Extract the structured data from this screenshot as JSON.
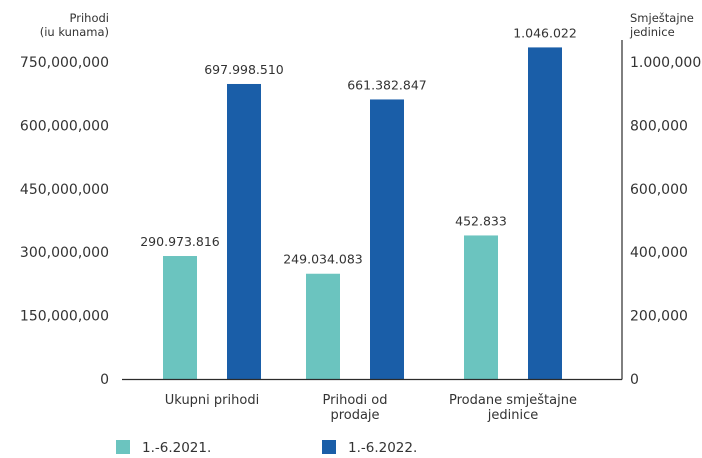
{
  "chart_data": {
    "type": "bar",
    "categories": [
      "Ukupni prihodi",
      "Prihodi od prodaje",
      "Prodane smještajne jedinice"
    ],
    "category_lines": [
      [
        "Ukupni prihodi"
      ],
      [
        "Prihodi od",
        "prodaje"
      ],
      [
        "Prodane smještajne",
        "jedinice"
      ]
    ],
    "series": [
      {
        "name": "1.-6.2021.",
        "color": "#6bc4bf",
        "values": [
          290973816,
          249034083,
          452833
        ],
        "labels": [
          "290.973.816",
          "249.034.083",
          "452.833"
        ],
        "axis": [
          "left",
          "left",
          "right"
        ]
      },
      {
        "name": "1.-6.2022.",
        "color": "#1a5ea8",
        "values": [
          697998510,
          661382847,
          1046022
        ],
        "labels": [
          "697.998.510",
          "661.382.847",
          "1.046.022"
        ],
        "axis": [
          "left",
          "left",
          "right"
        ]
      }
    ],
    "left_axis": {
      "title_lines": [
        "Prihodi",
        "(iu kunama)"
      ],
      "ylim": [
        0,
        750000000
      ],
      "ticks": [
        0,
        150000000,
        300000000,
        450000000,
        600000000,
        750000000
      ],
      "tick_labels": [
        "0",
        "150,000,000",
        "300,000,000",
        "450,000,000",
        "600,000,000",
        "750,000,000"
      ]
    },
    "right_axis": {
      "title_lines": [
        "Smještajne",
        "jedinice"
      ],
      "ylim": [
        0,
        1000000
      ],
      "ticks": [
        0,
        200000,
        400000,
        600000,
        800000,
        1000000
      ],
      "tick_labels": [
        "0",
        "200,000",
        "400,000",
        "600,000",
        "800,000",
        "1.000,000"
      ]
    },
    "legend_position": "bottom-left",
    "grid": false
  }
}
